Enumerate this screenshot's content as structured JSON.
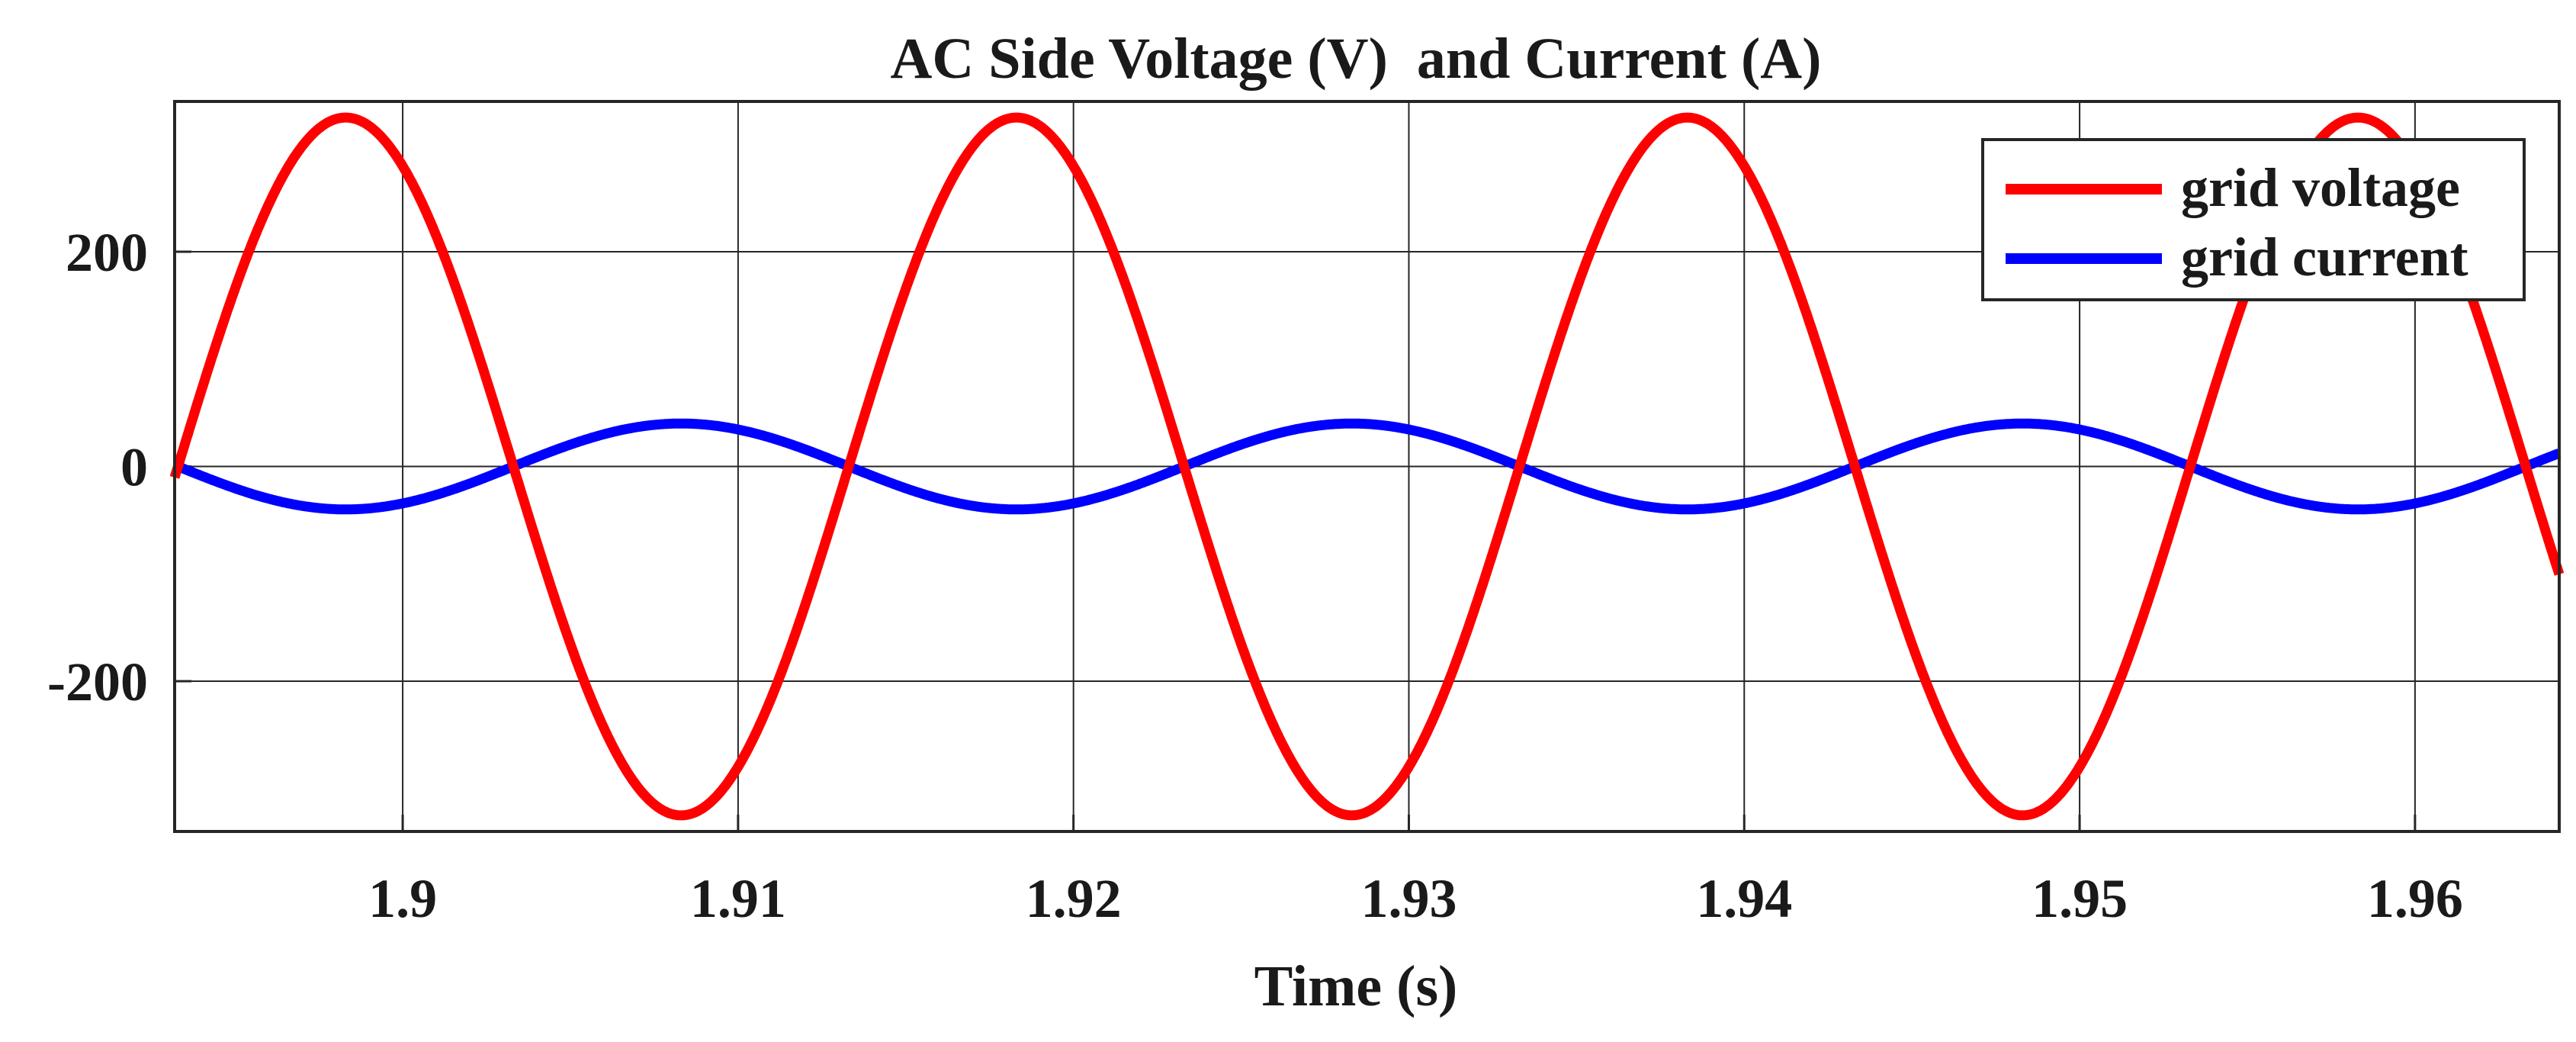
{
  "chart_data": {
    "type": "line",
    "title": "AC Side Voltage (V)  and Current (A)",
    "xlabel": "Time (s)",
    "ylabel": "",
    "xlim": [
      1.8932,
      1.9643
    ],
    "ylim": [
      -340,
      340
    ],
    "x_ticks": [
      1.9,
      1.91,
      1.92,
      1.93,
      1.94,
      1.95,
      1.96
    ],
    "x_tick_labels": [
      "1.9",
      "1.91",
      "1.92",
      "1.93",
      "1.94",
      "1.95",
      "1.96"
    ],
    "y_ticks": [
      -200,
      0,
      200
    ],
    "y_tick_labels": [
      "-200",
      "0",
      "200"
    ],
    "grid": true,
    "legend_position": "top-right",
    "series": [
      {
        "name": "grid voltage",
        "color": "#ff0000",
        "waveform": "sine",
        "amplitude": 325,
        "frequency_hz": 50,
        "zero_crossing_rising_s": 1.8933,
        "x_start": 1.8932,
        "x_end": 1.9643
      },
      {
        "name": "grid current",
        "color": "#0000ff",
        "waveform": "sine",
        "amplitude": -40,
        "frequency_hz": 50,
        "zero_crossing_rising_s": 1.8933,
        "x_start": 1.8932,
        "x_end": 1.9643
      }
    ]
  }
}
